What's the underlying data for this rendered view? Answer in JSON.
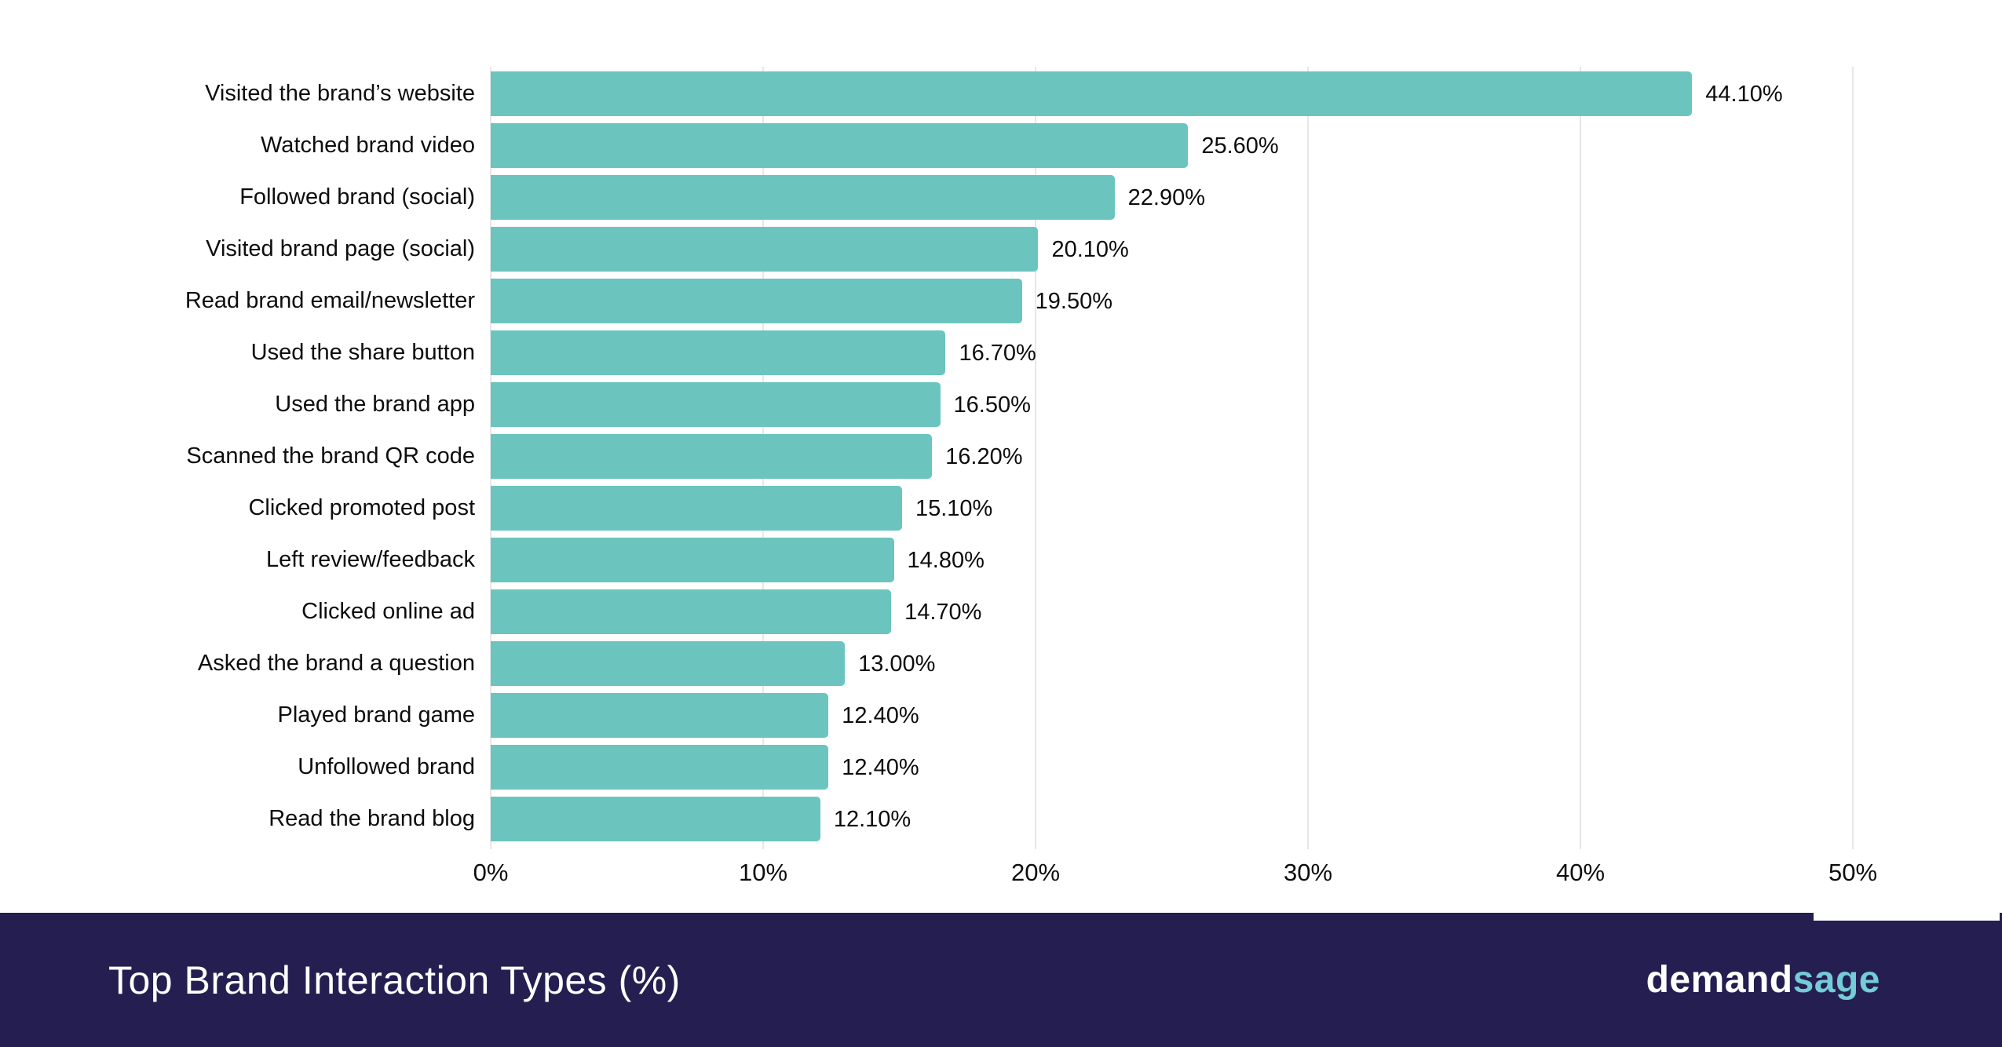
{
  "frame": {
    "background": "#ffffff",
    "border_color": "#d5d5d5"
  },
  "chart_data": {
    "type": "bar",
    "orientation": "horizontal",
    "title": "Top Brand Interaction Types (%)",
    "xlabel": "",
    "ylabel": "",
    "xlim": [
      0,
      50
    ],
    "grid": "vertical",
    "legend": "none",
    "bar_color": "#6bc5be",
    "gridline_color": "#e7e7e7",
    "text_color": "#0d0d0d",
    "categories": [
      "Visited the brand’s website",
      "Watched brand video",
      "Followed brand (social)",
      "Visited brand page (social)",
      "Read brand email/newsletter",
      "Used the share button",
      "Used the brand app",
      "Scanned the brand QR code",
      "Clicked promoted post",
      "Left review/feedback",
      "Clicked online ad",
      "Asked the brand a question",
      "Played brand game",
      "Unfollowed brand",
      "Read the brand blog"
    ],
    "values": [
      44.1,
      25.6,
      22.9,
      20.1,
      19.5,
      16.7,
      16.5,
      16.2,
      15.1,
      14.8,
      14.7,
      13.0,
      12.4,
      12.4,
      12.1
    ],
    "value_labels": [
      "44.10%",
      "25.60%",
      "22.90%",
      "20.10%",
      "19.50%",
      "16.70%",
      "16.50%",
      "16.20%",
      "15.10%",
      "14.80%",
      "14.70%",
      "13.00%",
      "12.40%",
      "12.40%",
      "12.10%"
    ],
    "tick_values": [
      0,
      10,
      20,
      30,
      40,
      50
    ],
    "tick_labels": [
      "0%",
      "10%",
      "20%",
      "30%",
      "40%",
      "50%"
    ]
  },
  "footer": {
    "title": "Top Brand Interaction Types (%)",
    "background": "#251e51",
    "title_color": "#ffffff",
    "logo": {
      "demand": "demand",
      "sage": "sage",
      "demand_color": "#ffffff",
      "sage_color": "#74ccd6"
    }
  }
}
